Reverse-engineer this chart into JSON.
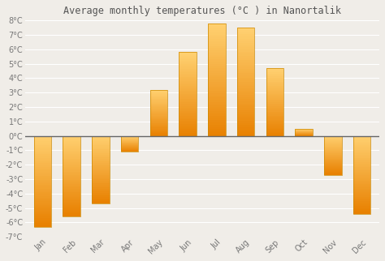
{
  "title": "Average monthly temperatures (°C ) in Nanortalik",
  "months": [
    "Jan",
    "Feb",
    "Mar",
    "Apr",
    "May",
    "Jun",
    "Jul",
    "Aug",
    "Sep",
    "Oct",
    "Nov",
    "Dec"
  ],
  "values": [
    -6.3,
    -5.6,
    -4.7,
    -1.1,
    3.2,
    5.8,
    7.8,
    7.5,
    4.7,
    0.5,
    -2.7,
    -5.4
  ],
  "bar_color_top": "#FFD070",
  "bar_color_bottom": "#E88000",
  "bar_edge_color": "#CC8800",
  "background_color": "#f0ede8",
  "plot_bg_color": "#f0ede8",
  "grid_color": "#ffffff",
  "ylim": [
    -7,
    8
  ],
  "yticks": [
    -7,
    -6,
    -5,
    -4,
    -3,
    -2,
    -1,
    0,
    1,
    2,
    3,
    4,
    5,
    6,
    7,
    8
  ],
  "zero_line_color": "#666666",
  "title_fontsize": 8.5,
  "tick_fontsize": 7,
  "bar_width": 0.6
}
